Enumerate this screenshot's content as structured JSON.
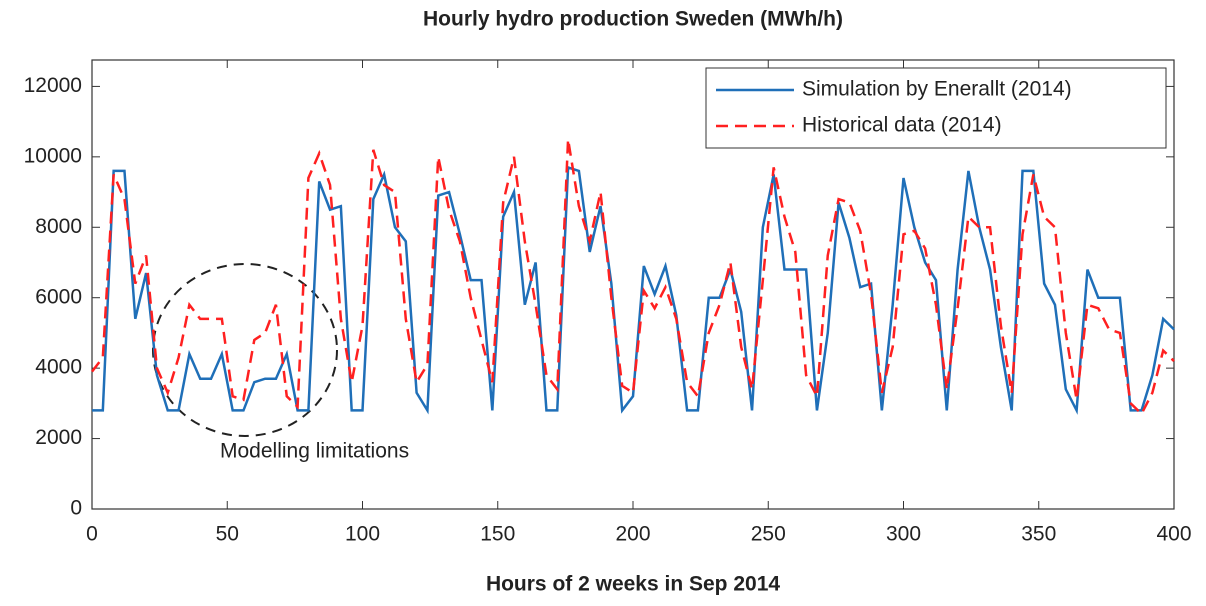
{
  "chart_data": {
    "type": "line",
    "title": "Hourly hydro production Sweden (MWh/h)",
    "xlabel": "Hours of 2 weeks in Sep 2014",
    "annotation": "Modelling limitations",
    "xlim": [
      0,
      400
    ],
    "xticks": [
      0,
      50,
      100,
      150,
      200,
      250,
      300,
      350,
      400
    ],
    "ylim": [
      0,
      12750
    ],
    "yticks": [
      0,
      2000,
      4000,
      6000,
      8000,
      10000,
      12000
    ],
    "legend": "upper right",
    "x": [
      0,
      4,
      8,
      12,
      16,
      20,
      24,
      28,
      32,
      36,
      40,
      44,
      48,
      52,
      56,
      60,
      64,
      68,
      72,
      76,
      80,
      84,
      88,
      92,
      96,
      100,
      104,
      108,
      112,
      116,
      120,
      124,
      128,
      132,
      136,
      140,
      144,
      148,
      152,
      156,
      160,
      164,
      168,
      172,
      176,
      180,
      184,
      188,
      192,
      196,
      200,
      204,
      208,
      212,
      216,
      220,
      224,
      228,
      232,
      236,
      240,
      244,
      248,
      252,
      256,
      260,
      264,
      268,
      272,
      276,
      280,
      284,
      288,
      292,
      296,
      300,
      304,
      308,
      312,
      316,
      320,
      324,
      328,
      332,
      336,
      340,
      344,
      348,
      352,
      356,
      360,
      364,
      368,
      372,
      376,
      380,
      384,
      388,
      392,
      396,
      400
    ],
    "series": [
      {
        "name": "Simulation by Enerallt (2014)",
        "color": "#1f6fb8",
        "dash": "none",
        "values": [
          2800,
          2800,
          9600,
          9600,
          5400,
          6700,
          3800,
          2800,
          2800,
          4400,
          3700,
          3700,
          4400,
          2800,
          2800,
          3600,
          3700,
          3700,
          4400,
          2800,
          2800,
          9300,
          8500,
          8600,
          2800,
          2800,
          8800,
          9500,
          8000,
          7600,
          3300,
          2800,
          8900,
          9000,
          7800,
          6500,
          6500,
          2800,
          8300,
          9000,
          5800,
          7000,
          2800,
          2800,
          9700,
          9600,
          7300,
          8600,
          6400,
          2800,
          3200,
          6900,
          6100,
          6900,
          5500,
          2800,
          2800,
          6000,
          6000,
          6800,
          5600,
          2800,
          8000,
          9500,
          6800,
          6800,
          6800,
          2800,
          5000,
          8700,
          7700,
          6300,
          6400,
          2800,
          5800,
          9400,
          8000,
          7000,
          6500,
          2800,
          6800,
          9600,
          8000,
          6800,
          4600,
          2800,
          9600,
          9600,
          6400,
          5800,
          3400,
          2800,
          6800,
          6000,
          6000,
          6000,
          2800,
          2800,
          3800,
          5400,
          5100
        ]
      },
      {
        "name": "Historical data (2014)",
        "color": "#ff2020",
        "dash": "12 7",
        "values": [
          3900,
          4300,
          9500,
          8800,
          6400,
          7200,
          4000,
          3300,
          4300,
          5800,
          5400,
          5400,
          5400,
          3200,
          3100,
          4800,
          5000,
          5800,
          3200,
          2900,
          9400,
          10100,
          9200,
          5400,
          3600,
          5200,
          10200,
          9200,
          9000,
          5400,
          3600,
          4100,
          10000,
          8500,
          7600,
          6000,
          4800,
          3600,
          8700,
          10000,
          7600,
          5800,
          3800,
          3400,
          10500,
          8600,
          7600,
          9000,
          6000,
          3500,
          3300,
          6200,
          5700,
          6300,
          5400,
          3600,
          3200,
          5000,
          5800,
          7000,
          4600,
          3400,
          6500,
          9700,
          8300,
          7300,
          3800,
          3200,
          7200,
          8800,
          8700,
          7900,
          6100,
          3300,
          4600,
          7800,
          7900,
          7400,
          5800,
          3400,
          5700,
          8300,
          8000,
          8000,
          5200,
          3300,
          7800,
          9500,
          8300,
          8000,
          5000,
          3100,
          5800,
          5700,
          5100,
          5000,
          3000,
          2700,
          3300,
          4500,
          4200
        ]
      }
    ]
  }
}
